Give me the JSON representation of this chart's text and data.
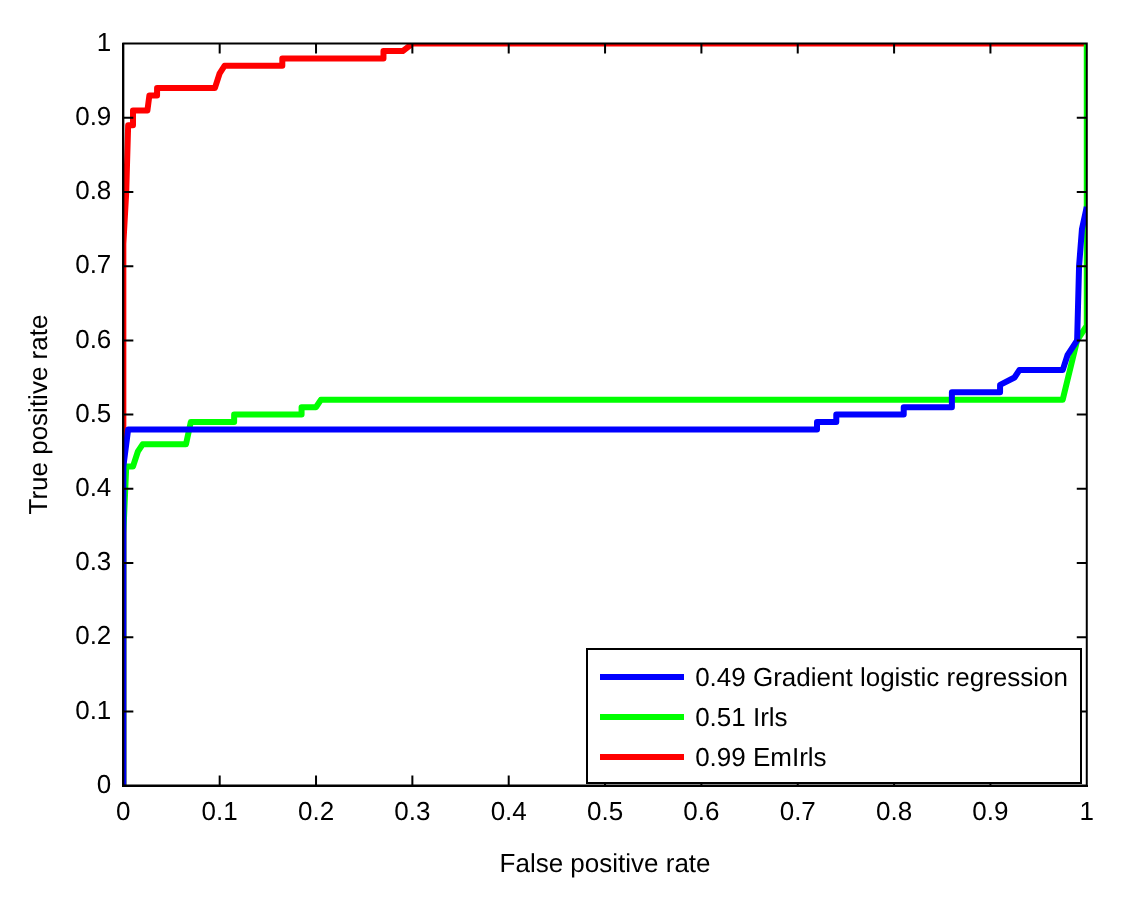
{
  "chart_data": {
    "type": "line",
    "xlabel": "False positive rate",
    "ylabel": "True positive rate",
    "xlim": [
      0,
      1
    ],
    "ylim": [
      0,
      1
    ],
    "xticks": [
      0,
      0.1,
      0.2,
      0.3,
      0.4,
      0.5,
      0.6,
      0.7,
      0.8,
      0.9,
      1
    ],
    "yticks": [
      0,
      0.1,
      0.2,
      0.3,
      0.4,
      0.5,
      0.6,
      0.7,
      0.8,
      0.9,
      1
    ],
    "grid": false,
    "legend": "bottom right",
    "marker": "none",
    "line_style": "solid",
    "series": [
      {
        "name": "0.49 Gradient logistic regression",
        "color": "#0000ff",
        "x": [
          0,
          0,
          0.005,
          0.72,
          0.72,
          0.74,
          0.74,
          0.81,
          0.81,
          0.86,
          0.86,
          0.91,
          0.91,
          0.925,
          0.93,
          0.975,
          0.98,
          0.99,
          0.992,
          0.995,
          1
        ],
        "values": [
          0,
          0.43,
          0.48,
          0.48,
          0.49,
          0.49,
          0.5,
          0.5,
          0.51,
          0.51,
          0.53,
          0.53,
          0.54,
          0.55,
          0.56,
          0.56,
          0.58,
          0.6,
          0.7,
          0.75,
          0.78
        ]
      },
      {
        "name": "0.51 Irls",
        "color": "#00ff00",
        "x": [
          0,
          0,
          0.003,
          0.01,
          0.015,
          0.02,
          0.065,
          0.07,
          0.115,
          0.115,
          0.185,
          0.185,
          0.2,
          0.205,
          0.975,
          0.99,
          1,
          1
        ],
        "values": [
          0,
          0.34,
          0.43,
          0.43,
          0.45,
          0.46,
          0.46,
          0.49,
          0.49,
          0.5,
          0.5,
          0.51,
          0.51,
          0.52,
          0.52,
          0.6,
          0.62,
          1
        ]
      },
      {
        "name": "0.99 EmIrls",
        "color": "#ff0000",
        "x": [
          0,
          0,
          0.003,
          0.005,
          0.01,
          0.01,
          0.025,
          0.027,
          0.035,
          0.035,
          0.095,
          0.1,
          0.105,
          0.165,
          0.165,
          0.27,
          0.27,
          0.29,
          0.3,
          1
        ],
        "values": [
          0,
          0.73,
          0.8,
          0.89,
          0.89,
          0.91,
          0.91,
          0.93,
          0.93,
          0.94,
          0.94,
          0.96,
          0.97,
          0.97,
          0.98,
          0.98,
          0.99,
          0.99,
          1,
          1
        ]
      }
    ]
  }
}
